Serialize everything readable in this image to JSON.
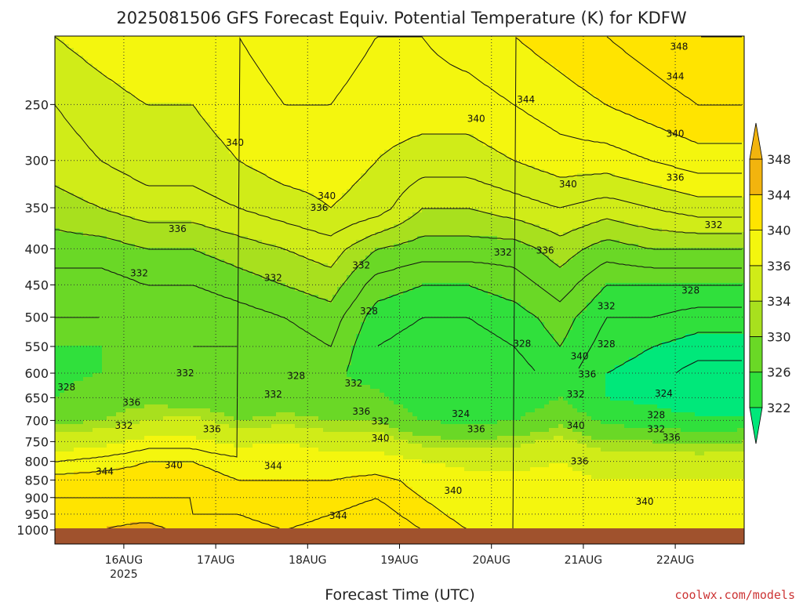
{
  "chart_data": {
    "type": "heatmap",
    "title": "2025081506 GFS Forecast Equiv. Potential Temperature (K) for KDFW",
    "xlabel": "Forecast Time (UTC)",
    "ylabel": "",
    "y_ticks": [
      250,
      300,
      350,
      400,
      450,
      500,
      550,
      600,
      650,
      700,
      750,
      800,
      850,
      900,
      950,
      1000
    ],
    "y_range": [
      200,
      1000
    ],
    "y_scale": "log-pressure",
    "x_ticks": [
      {
        "label": "16AUG",
        "sublabel": "2025",
        "hours": 18
      },
      {
        "label": "17AUG",
        "sublabel": "",
        "hours": 42
      },
      {
        "label": "18AUG",
        "sublabel": "",
        "hours": 66
      },
      {
        "label": "19AUG",
        "sublabel": "",
        "hours": 90
      },
      {
        "label": "20AUG",
        "sublabel": "",
        "hours": 114
      },
      {
        "label": "21AUG",
        "sublabel": "",
        "hours": 138
      },
      {
        "label": "22AUG",
        "sublabel": "",
        "hours": 162
      }
    ],
    "x_range_hours": [
      0,
      180
    ],
    "colorbar": {
      "levels": [
        322,
        326,
        330,
        334,
        336,
        340,
        344,
        348
      ],
      "colors": [
        "#00e87a",
        "#30e03c",
        "#6ad826",
        "#a8e01e",
        "#d0ec18",
        "#f4f60e",
        "#ffe400",
        "#f2b40e"
      ],
      "extend": "both"
    },
    "profiles": [
      {
        "h": 0,
        "p": [
          200,
          250,
          300,
          350,
          400,
          450,
          500,
          550,
          600,
          650,
          700,
          750,
          800,
          850,
          900,
          950,
          1000
        ],
        "v": [
          340,
          338,
          337,
          335,
          333,
          331,
          330,
          330,
          329,
          330,
          333,
          338,
          342,
          345,
          346,
          347,
          348
        ]
      },
      {
        "h": 12,
        "p": [
          200,
          250,
          300,
          350,
          400,
          450,
          500,
          550,
          600,
          650,
          700,
          750,
          800,
          850,
          900,
          950,
          1000
        ],
        "v": [
          341,
          339,
          338,
          336,
          333,
          331,
          330,
          330,
          330,
          332,
          334,
          339,
          343,
          345,
          346,
          347,
          348
        ]
      },
      {
        "h": 24,
        "p": [
          200,
          250,
          300,
          350,
          400,
          450,
          500,
          550,
          600,
          650,
          700,
          750,
          800,
          850,
          900,
          950,
          1000
        ],
        "v": [
          342,
          340,
          339,
          337,
          334,
          332,
          331,
          331,
          331,
          333,
          336,
          341,
          344,
          345,
          346,
          347,
          349
        ]
      },
      {
        "h": 36,
        "p": [
          200,
          250,
          300,
          350,
          400,
          450,
          500,
          550,
          600,
          650,
          700,
          750,
          800,
          850,
          900,
          950,
          1000
        ],
        "v": [
          341,
          340,
          339,
          337,
          334,
          332,
          330,
          330,
          330,
          332,
          337,
          341,
          344,
          345,
          346,
          346,
          347
        ]
      },
      {
        "h": 48,
        "p": [
          200,
          250,
          300,
          350,
          400,
          450,
          500,
          550,
          600,
          650,
          700,
          750,
          800,
          850,
          900,
          950,
          1000
        ],
        "v": [
          342,
          341,
          340,
          338,
          335,
          333,
          331,
          330,
          330,
          331,
          334,
          339,
          343,
          344,
          345,
          346,
          347
        ]
      },
      {
        "h": 60,
        "p": [
          200,
          250,
          300,
          350,
          400,
          450,
          500,
          550,
          600,
          650,
          700,
          750,
          800,
          850,
          900,
          950,
          1000
        ],
        "v": [
          343,
          342,
          341,
          339,
          336,
          334,
          332,
          331,
          330,
          332,
          335,
          340,
          343,
          344,
          345,
          345,
          346
        ]
      },
      {
        "h": 72,
        "p": [
          200,
          250,
          300,
          350,
          400,
          450,
          500,
          550,
          600,
          650,
          700,
          750,
          800,
          850,
          900,
          950,
          1000
        ],
        "v": [
          343,
          342,
          341,
          340,
          337,
          335,
          333,
          332,
          331,
          332,
          334,
          338,
          342,
          344,
          345,
          346,
          347
        ]
      },
      {
        "h": 84,
        "p": [
          200,
          250,
          300,
          350,
          400,
          450,
          500,
          550,
          600,
          650,
          700,
          750,
          800,
          850,
          900,
          950,
          1000
        ],
        "v": [
          342,
          341,
          340,
          339,
          334,
          331,
          329,
          328,
          328,
          331,
          334,
          338,
          342,
          345,
          346,
          347,
          348
        ]
      },
      {
        "h": 96,
        "p": [
          200,
          250,
          300,
          350,
          400,
          450,
          500,
          550,
          600,
          650,
          700,
          750,
          800,
          850,
          900,
          950,
          1000
        ],
        "v": [
          342,
          341,
          339,
          336,
          333,
          330,
          328,
          327,
          326,
          327,
          330,
          335,
          340,
          343,
          344,
          345,
          346
        ]
      },
      {
        "h": 108,
        "p": [
          200,
          250,
          300,
          350,
          400,
          450,
          500,
          550,
          600,
          650,
          700,
          750,
          800,
          850,
          900,
          950,
          1000
        ],
        "v": [
          343,
          341,
          339,
          336,
          333,
          330,
          328,
          327,
          326,
          326,
          329,
          335,
          339,
          341,
          342,
          343,
          344
        ]
      },
      {
        "h": 120,
        "p": [
          200,
          250,
          300,
          350,
          400,
          450,
          500,
          550,
          600,
          650,
          700,
          750,
          800,
          850,
          900,
          950,
          1000
        ],
        "v": [
          344,
          342,
          340,
          337,
          333,
          331,
          329,
          328,
          327,
          327,
          330,
          335,
          339,
          341,
          342,
          343,
          344
        ]
      },
      {
        "h": 132,
        "p": [
          200,
          250,
          300,
          350,
          400,
          450,
          500,
          550,
          600,
          650,
          700,
          750,
          800,
          850,
          900,
          950,
          1000
        ],
        "v": [
          345,
          343,
          341,
          338,
          335,
          333,
          331,
          330,
          329,
          330,
          333,
          337,
          340,
          341,
          342,
          343,
          343
        ]
      },
      {
        "h": 144,
        "p": [
          200,
          250,
          300,
          350,
          400,
          450,
          500,
          550,
          600,
          650,
          700,
          750,
          800,
          850,
          900,
          950,
          1000
        ],
        "v": [
          346,
          344,
          341,
          337,
          333,
          330,
          328,
          327,
          326,
          326,
          329,
          334,
          338,
          340,
          341,
          342,
          343
        ]
      },
      {
        "h": 156,
        "p": [
          200,
          250,
          300,
          350,
          400,
          450,
          500,
          550,
          600,
          650,
          700,
          750,
          800,
          850,
          900,
          950,
          1000
        ],
        "v": [
          347,
          345,
          342,
          338,
          334,
          330,
          328,
          326,
          325,
          325,
          328,
          334,
          338,
          340,
          341,
          342,
          343
        ]
      },
      {
        "h": 168,
        "p": [
          200,
          250,
          300,
          350,
          400,
          450,
          500,
          550,
          600,
          650,
          700,
          750,
          800,
          850,
          900,
          950,
          1000
        ],
        "v": [
          348,
          346,
          343,
          339,
          334,
          330,
          327,
          325,
          323,
          323,
          327,
          333,
          338,
          340,
          341,
          342,
          343
        ]
      },
      {
        "h": 180,
        "p": [
          200,
          250,
          300,
          350,
          400,
          450,
          500,
          550,
          600,
          650,
          700,
          750,
          800,
          850,
          900,
          950,
          1000
        ],
        "v": [
          348,
          346,
          343,
          339,
          334,
          330,
          327,
          325,
          323,
          323,
          327,
          334,
          338,
          340,
          341,
          342,
          343
        ]
      }
    ],
    "contour_labels": [
      {
        "text": "348",
        "h": 163,
        "p": 207
      },
      {
        "text": "344",
        "h": 162,
        "p": 228
      },
      {
        "text": "344",
        "h": 123,
        "p": 246
      },
      {
        "text": "340",
        "h": 110,
        "p": 262
      },
      {
        "text": "340",
        "h": 162,
        "p": 275
      },
      {
        "text": "340",
        "h": 47,
        "p": 283
      },
      {
        "text": "336",
        "h": 162,
        "p": 317
      },
      {
        "text": "340",
        "h": 134,
        "p": 324
      },
      {
        "text": "340",
        "h": 71,
        "p": 337
      },
      {
        "text": "336",
        "h": 69,
        "p": 350
      },
      {
        "text": "336",
        "h": 32,
        "p": 375
      },
      {
        "text": "332",
        "h": 172,
        "p": 370
      },
      {
        "text": "332",
        "h": 117,
        "p": 405
      },
      {
        "text": "336",
        "h": 128,
        "p": 402
      },
      {
        "text": "332",
        "h": 80,
        "p": 422
      },
      {
        "text": "332",
        "h": 22,
        "p": 433
      },
      {
        "text": "332",
        "h": 57,
        "p": 440
      },
      {
        "text": "328",
        "h": 166,
        "p": 458
      },
      {
        "text": "332",
        "h": 144,
        "p": 482
      },
      {
        "text": "328",
        "h": 82,
        "p": 490
      },
      {
        "text": "328",
        "h": 122,
        "p": 545
      },
      {
        "text": "328",
        "h": 144,
        "p": 546
      },
      {
        "text": "340",
        "h": 137,
        "p": 568
      },
      {
        "text": "332",
        "h": 34,
        "p": 600
      },
      {
        "text": "336",
        "h": 139,
        "p": 602
      },
      {
        "text": "328",
        "h": 63,
        "p": 605
      },
      {
        "text": "328",
        "h": 3,
        "p": 628
      },
      {
        "text": "332",
        "h": 78,
        "p": 620
      },
      {
        "text": "332",
        "h": 57,
        "p": 643
      },
      {
        "text": "332",
        "h": 136,
        "p": 643
      },
      {
        "text": "324",
        "h": 159,
        "p": 641
      },
      {
        "text": "336",
        "h": 20,
        "p": 660
      },
      {
        "text": "336",
        "h": 80,
        "p": 680
      },
      {
        "text": "324",
        "h": 106,
        "p": 685
      },
      {
        "text": "328",
        "h": 157,
        "p": 688
      },
      {
        "text": "332",
        "h": 18,
        "p": 712
      },
      {
        "text": "332",
        "h": 85,
        "p": 702
      },
      {
        "text": "336",
        "h": 41,
        "p": 720
      },
      {
        "text": "336",
        "h": 110,
        "p": 720
      },
      {
        "text": "340",
        "h": 136,
        "p": 712
      },
      {
        "text": "332",
        "h": 157,
        "p": 720
      },
      {
        "text": "336",
        "h": 161,
        "p": 740
      },
      {
        "text": "340",
        "h": 85,
        "p": 742
      },
      {
        "text": "336",
        "h": 137,
        "p": 800
      },
      {
        "text": "340",
        "h": 31,
        "p": 810
      },
      {
        "text": "344",
        "h": 13,
        "p": 827
      },
      {
        "text": "344",
        "h": 57,
        "p": 812
      },
      {
        "text": "340",
        "h": 104,
        "p": 880
      },
      {
        "text": "340",
        "h": 154,
        "p": 912
      },
      {
        "text": "344",
        "h": 74,
        "p": 955
      }
    ]
  },
  "footer": {
    "credit": "coolwx.com/models"
  }
}
